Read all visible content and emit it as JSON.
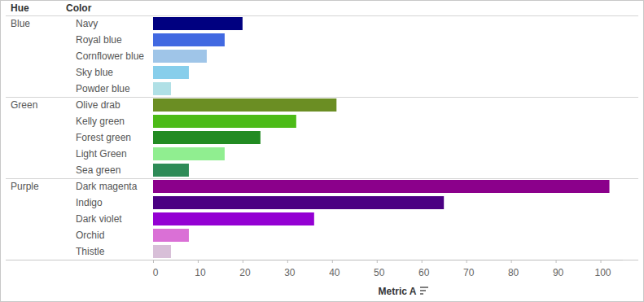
{
  "chart_data": {
    "type": "bar",
    "orientation": "horizontal",
    "row_headers": [
      "Hue",
      "Color"
    ],
    "hue": [
      "Blue",
      "Blue",
      "Blue",
      "Blue",
      "Blue",
      "Green",
      "Green",
      "Green",
      "Green",
      "Green",
      "Purple",
      "Purple",
      "Purple",
      "Purple",
      "Purple"
    ],
    "categories": [
      "Navy",
      "Royal blue",
      "Cornflower blue",
      "Sky blue",
      "Powder blue",
      "Olive drab",
      "Kelly green",
      "Forest green",
      "Light Green",
      "Sea green",
      "Dark magenta",
      "Indigo",
      "Dark violet",
      "Orchid",
      "Thistle"
    ],
    "values": [
      20,
      16,
      12,
      8,
      4,
      41,
      32,
      24,
      16,
      8,
      102,
      65,
      36,
      8,
      4
    ],
    "colors": [
      "#000080",
      "#4169e1",
      "#9fc5e8",
      "#87ceeb",
      "#b0e0e6",
      "#6b8e23",
      "#4cbb17",
      "#228b22",
      "#90ee90",
      "#2e8b57",
      "#8b008b",
      "#4b0082",
      "#9400d3",
      "#da70d6",
      "#d8bfd8"
    ],
    "x_label": "Metric A",
    "xlim": [
      0,
      105
    ],
    "xticks": [
      0,
      10,
      20,
      30,
      40,
      50,
      60,
      70,
      80,
      90,
      100
    ],
    "grid": false
  }
}
